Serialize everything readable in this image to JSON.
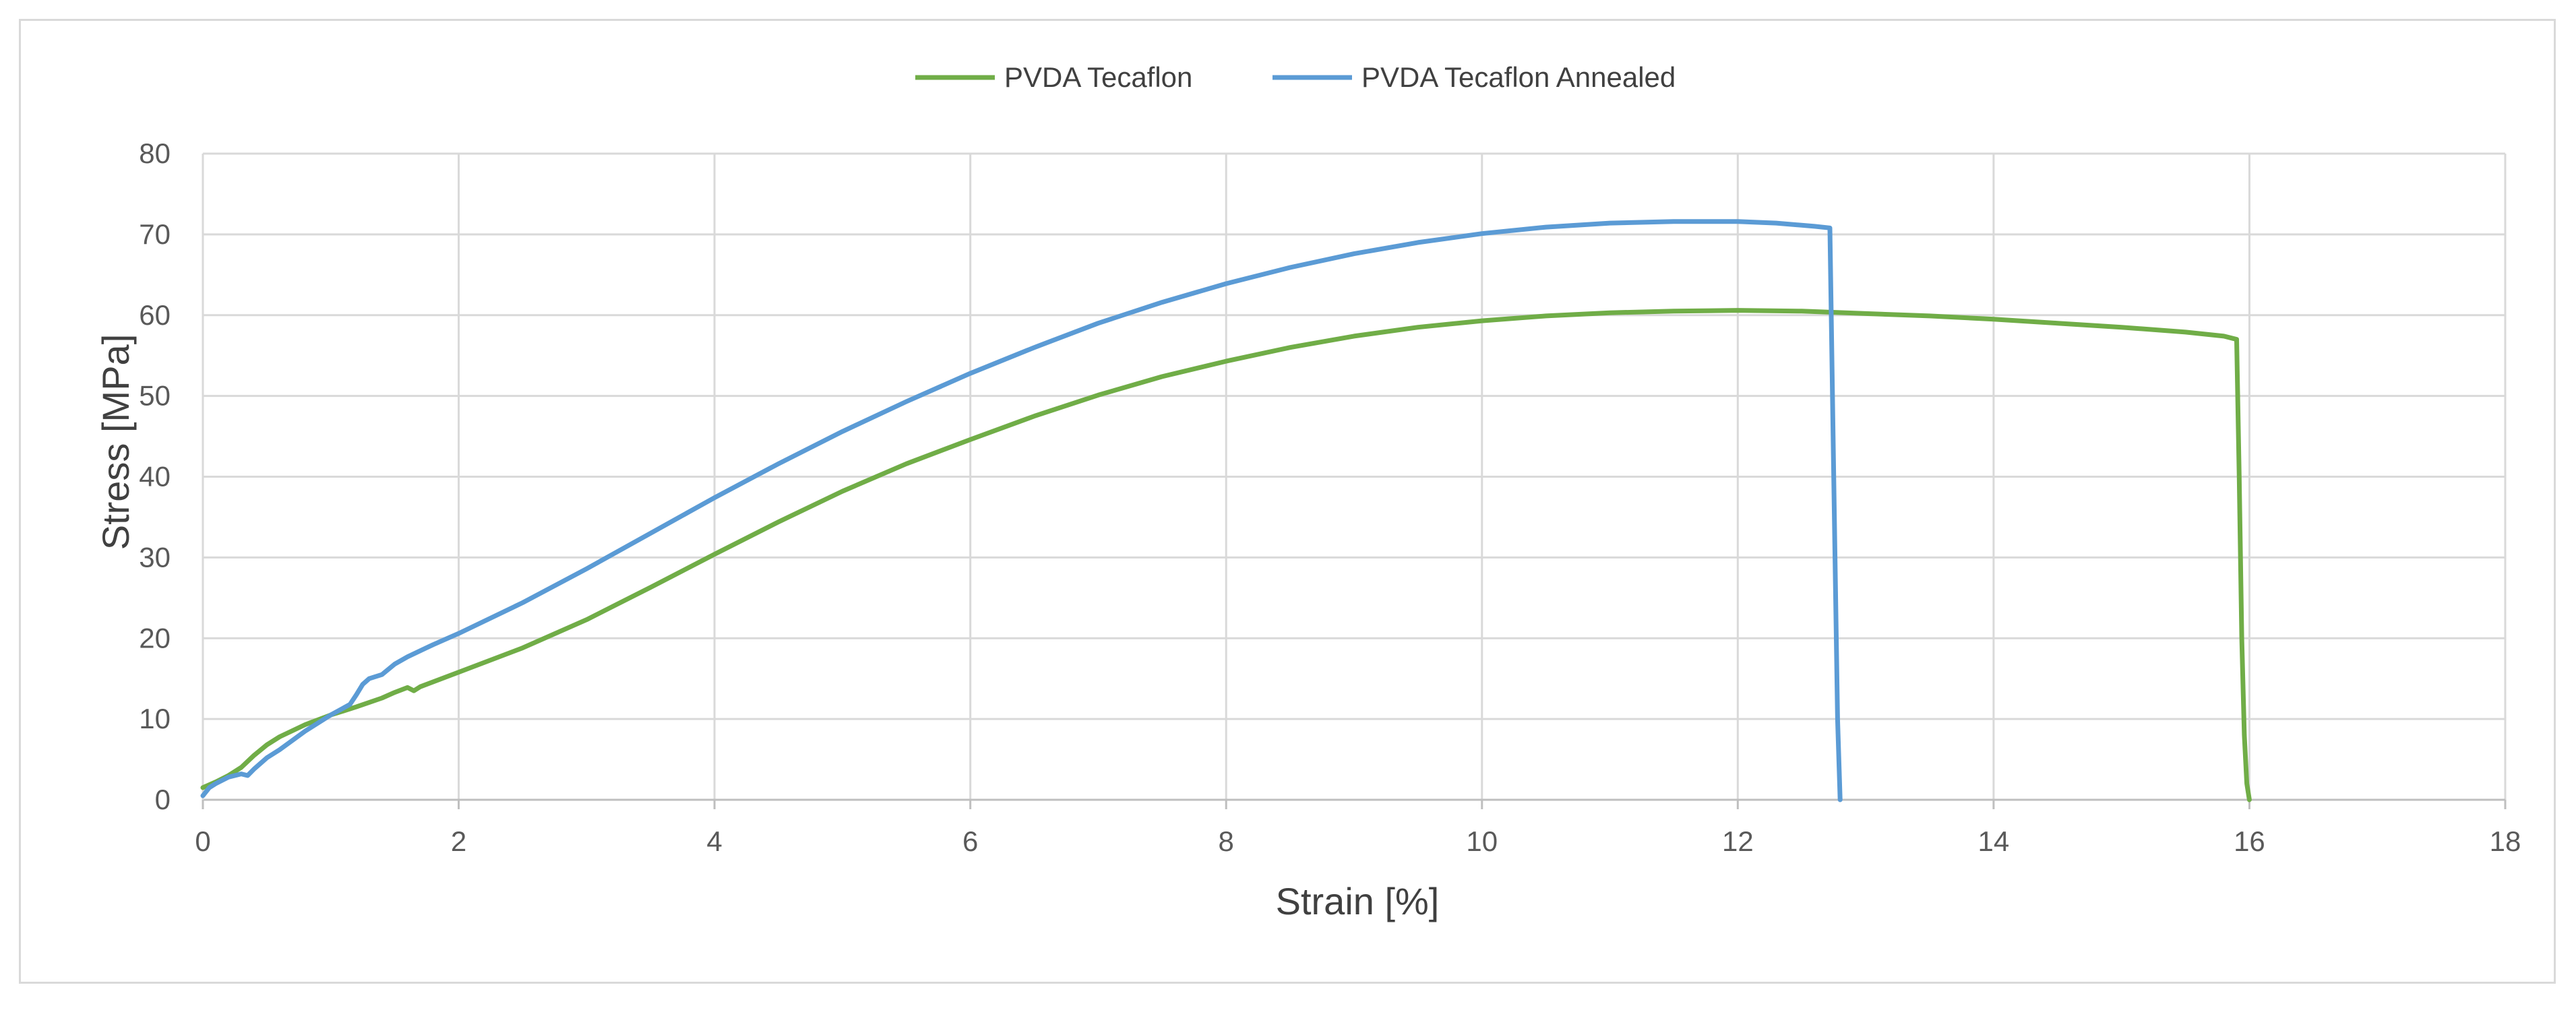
{
  "chart_data": {
    "type": "line",
    "title": "",
    "xlabel": "Strain [%]",
    "ylabel": "Stress  [MPa]",
    "xlim": [
      0,
      18
    ],
    "ylim": [
      0,
      80
    ],
    "xticks": [
      0,
      2,
      4,
      6,
      8,
      10,
      12,
      14,
      16,
      18
    ],
    "yticks": [
      0,
      10,
      20,
      30,
      40,
      50,
      60,
      70,
      80
    ],
    "grid": true,
    "legend": "top-center",
    "series": [
      {
        "name": "PVDA Tecaflon",
        "color": "#70ad47",
        "x": [
          0,
          0.1,
          0.2,
          0.3,
          0.4,
          0.5,
          0.6,
          0.8,
          1.0,
          1.2,
          1.4,
          1.5,
          1.6,
          1.65,
          1.7,
          2.0,
          2.5,
          3.0,
          3.5,
          4.0,
          4.5,
          5.0,
          5.5,
          6.0,
          6.5,
          7.0,
          7.5,
          8.0,
          8.5,
          9.0,
          9.5,
          10.0,
          10.5,
          11.0,
          11.5,
          12.0,
          12.5,
          13.0,
          13.5,
          14.0,
          14.5,
          15.0,
          15.5,
          15.8,
          15.9,
          15.92,
          15.94,
          15.96,
          15.98,
          16.0
        ],
        "y": [
          1.5,
          2.2,
          3.0,
          4.0,
          5.5,
          6.8,
          7.8,
          9.3,
          10.5,
          11.5,
          12.6,
          13.3,
          13.9,
          13.5,
          14.0,
          15.8,
          18.8,
          22.3,
          26.3,
          30.4,
          34.4,
          38.2,
          41.6,
          44.6,
          47.5,
          50.1,
          52.4,
          54.3,
          56.0,
          57.4,
          58.5,
          59.3,
          59.9,
          60.3,
          60.5,
          60.6,
          60.5,
          60.2,
          59.9,
          59.5,
          59.0,
          58.5,
          57.9,
          57.4,
          57.0,
          40.0,
          20.0,
          8.0,
          2.0,
          0.0
        ]
      },
      {
        "name": "PVDA Tecaflon Annealed",
        "color": "#5b9bd5",
        "x": [
          0,
          0.05,
          0.1,
          0.2,
          0.3,
          0.35,
          0.4,
          0.5,
          0.6,
          0.8,
          1.0,
          1.15,
          1.2,
          1.25,
          1.3,
          1.4,
          1.5,
          1.6,
          1.8,
          2.0,
          2.5,
          3.0,
          3.5,
          4.0,
          4.5,
          5.0,
          5.5,
          6.0,
          6.5,
          7.0,
          7.5,
          8.0,
          8.5,
          9.0,
          9.5,
          10.0,
          10.5,
          11.0,
          11.5,
          12.0,
          12.3,
          12.6,
          12.72,
          12.75,
          12.78,
          12.8
        ],
        "y": [
          0.5,
          1.5,
          2.0,
          2.8,
          3.2,
          3.0,
          3.8,
          5.2,
          6.2,
          8.5,
          10.5,
          11.8,
          13.0,
          14.3,
          15.0,
          15.5,
          16.8,
          17.7,
          19.2,
          20.6,
          24.4,
          28.6,
          33.0,
          37.4,
          41.6,
          45.6,
          49.3,
          52.8,
          56.0,
          59.0,
          61.6,
          63.9,
          65.9,
          67.6,
          69.0,
          70.1,
          70.9,
          71.4,
          71.6,
          71.6,
          71.4,
          71.0,
          70.8,
          40.0,
          10.0,
          0.0
        ]
      }
    ]
  }
}
